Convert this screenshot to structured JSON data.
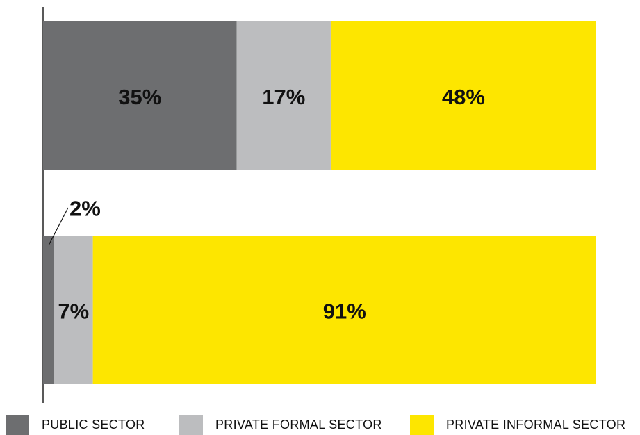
{
  "chart_data": {
    "type": "stacked_barh",
    "categories": [
      null,
      null
    ],
    "series": [
      {
        "name": "PUBLIC SECTOR",
        "color": "#6d6e70",
        "values": [
          35,
          2
        ],
        "value_labels": [
          "35%",
          "2%"
        ]
      },
      {
        "name": "PRIVATE FORMAL SECTOR",
        "color": "#bcbdbf",
        "values": [
          17,
          7
        ],
        "value_labels": [
          "17%",
          "7%"
        ]
      },
      {
        "name": "PRIVATE INFORMAL SECTOR",
        "color": "#fde600",
        "values": [
          48,
          91
        ],
        "value_labels": [
          "48%",
          "91%"
        ]
      }
    ],
    "xlim": [
      0,
      100
    ],
    "legend": "bottom"
  }
}
